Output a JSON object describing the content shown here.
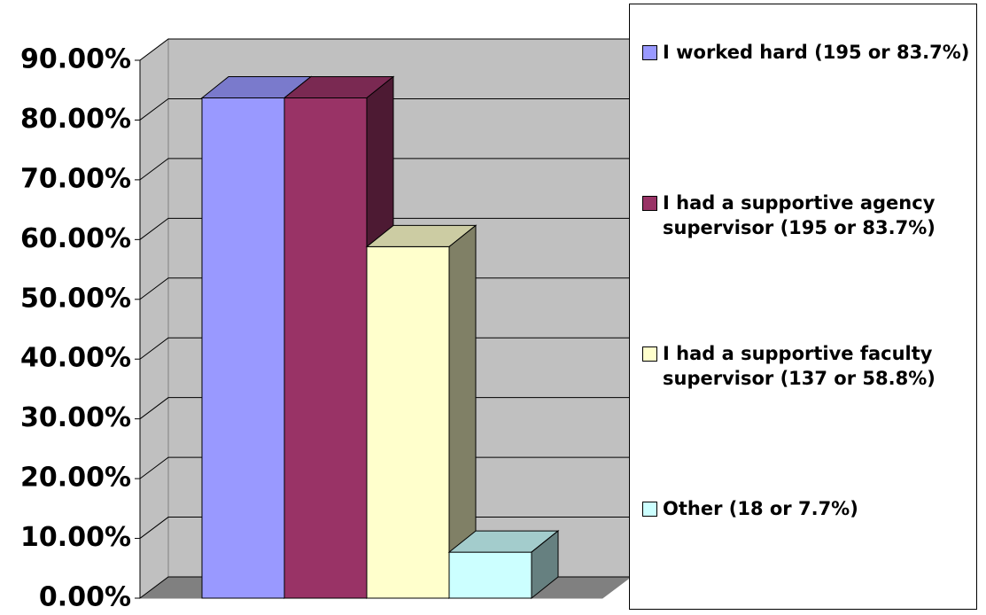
{
  "chart_data": {
    "type": "bar3d",
    "series": [
      {
        "name": "I worked hard (195 or 83.7%)",
        "color": "#9999ff",
        "values": [
          83.7
        ]
      },
      {
        "name": "I had a supportive agency supervisor (195 or 83.7%)",
        "color": "#993366",
        "values": [
          83.7
        ]
      },
      {
        "name": "I had a supportive faculty supervisor (137 or 58.8%)",
        "color": "#ffffcc",
        "values": [
          58.8
        ]
      },
      {
        "name": "Other (18 or 7.7%)",
        "color": "#ccffff",
        "values": [
          7.7
        ]
      }
    ],
    "ylim": [
      0,
      90
    ],
    "yticks": [
      {
        "value": 0,
        "label": "0.00%"
      },
      {
        "value": 10,
        "label": "10.00%"
      },
      {
        "value": 20,
        "label": "20.00%"
      },
      {
        "value": 30,
        "label": "30.00%"
      },
      {
        "value": 40,
        "label": "40.00%"
      },
      {
        "value": 50,
        "label": "50.00%"
      },
      {
        "value": 60,
        "label": "60.00%"
      },
      {
        "value": 70,
        "label": "70.00%"
      },
      {
        "value": 80,
        "label": "80.00%"
      },
      {
        "value": 90,
        "label": "90.00%"
      }
    ],
    "grid": true,
    "legend": "right"
  }
}
